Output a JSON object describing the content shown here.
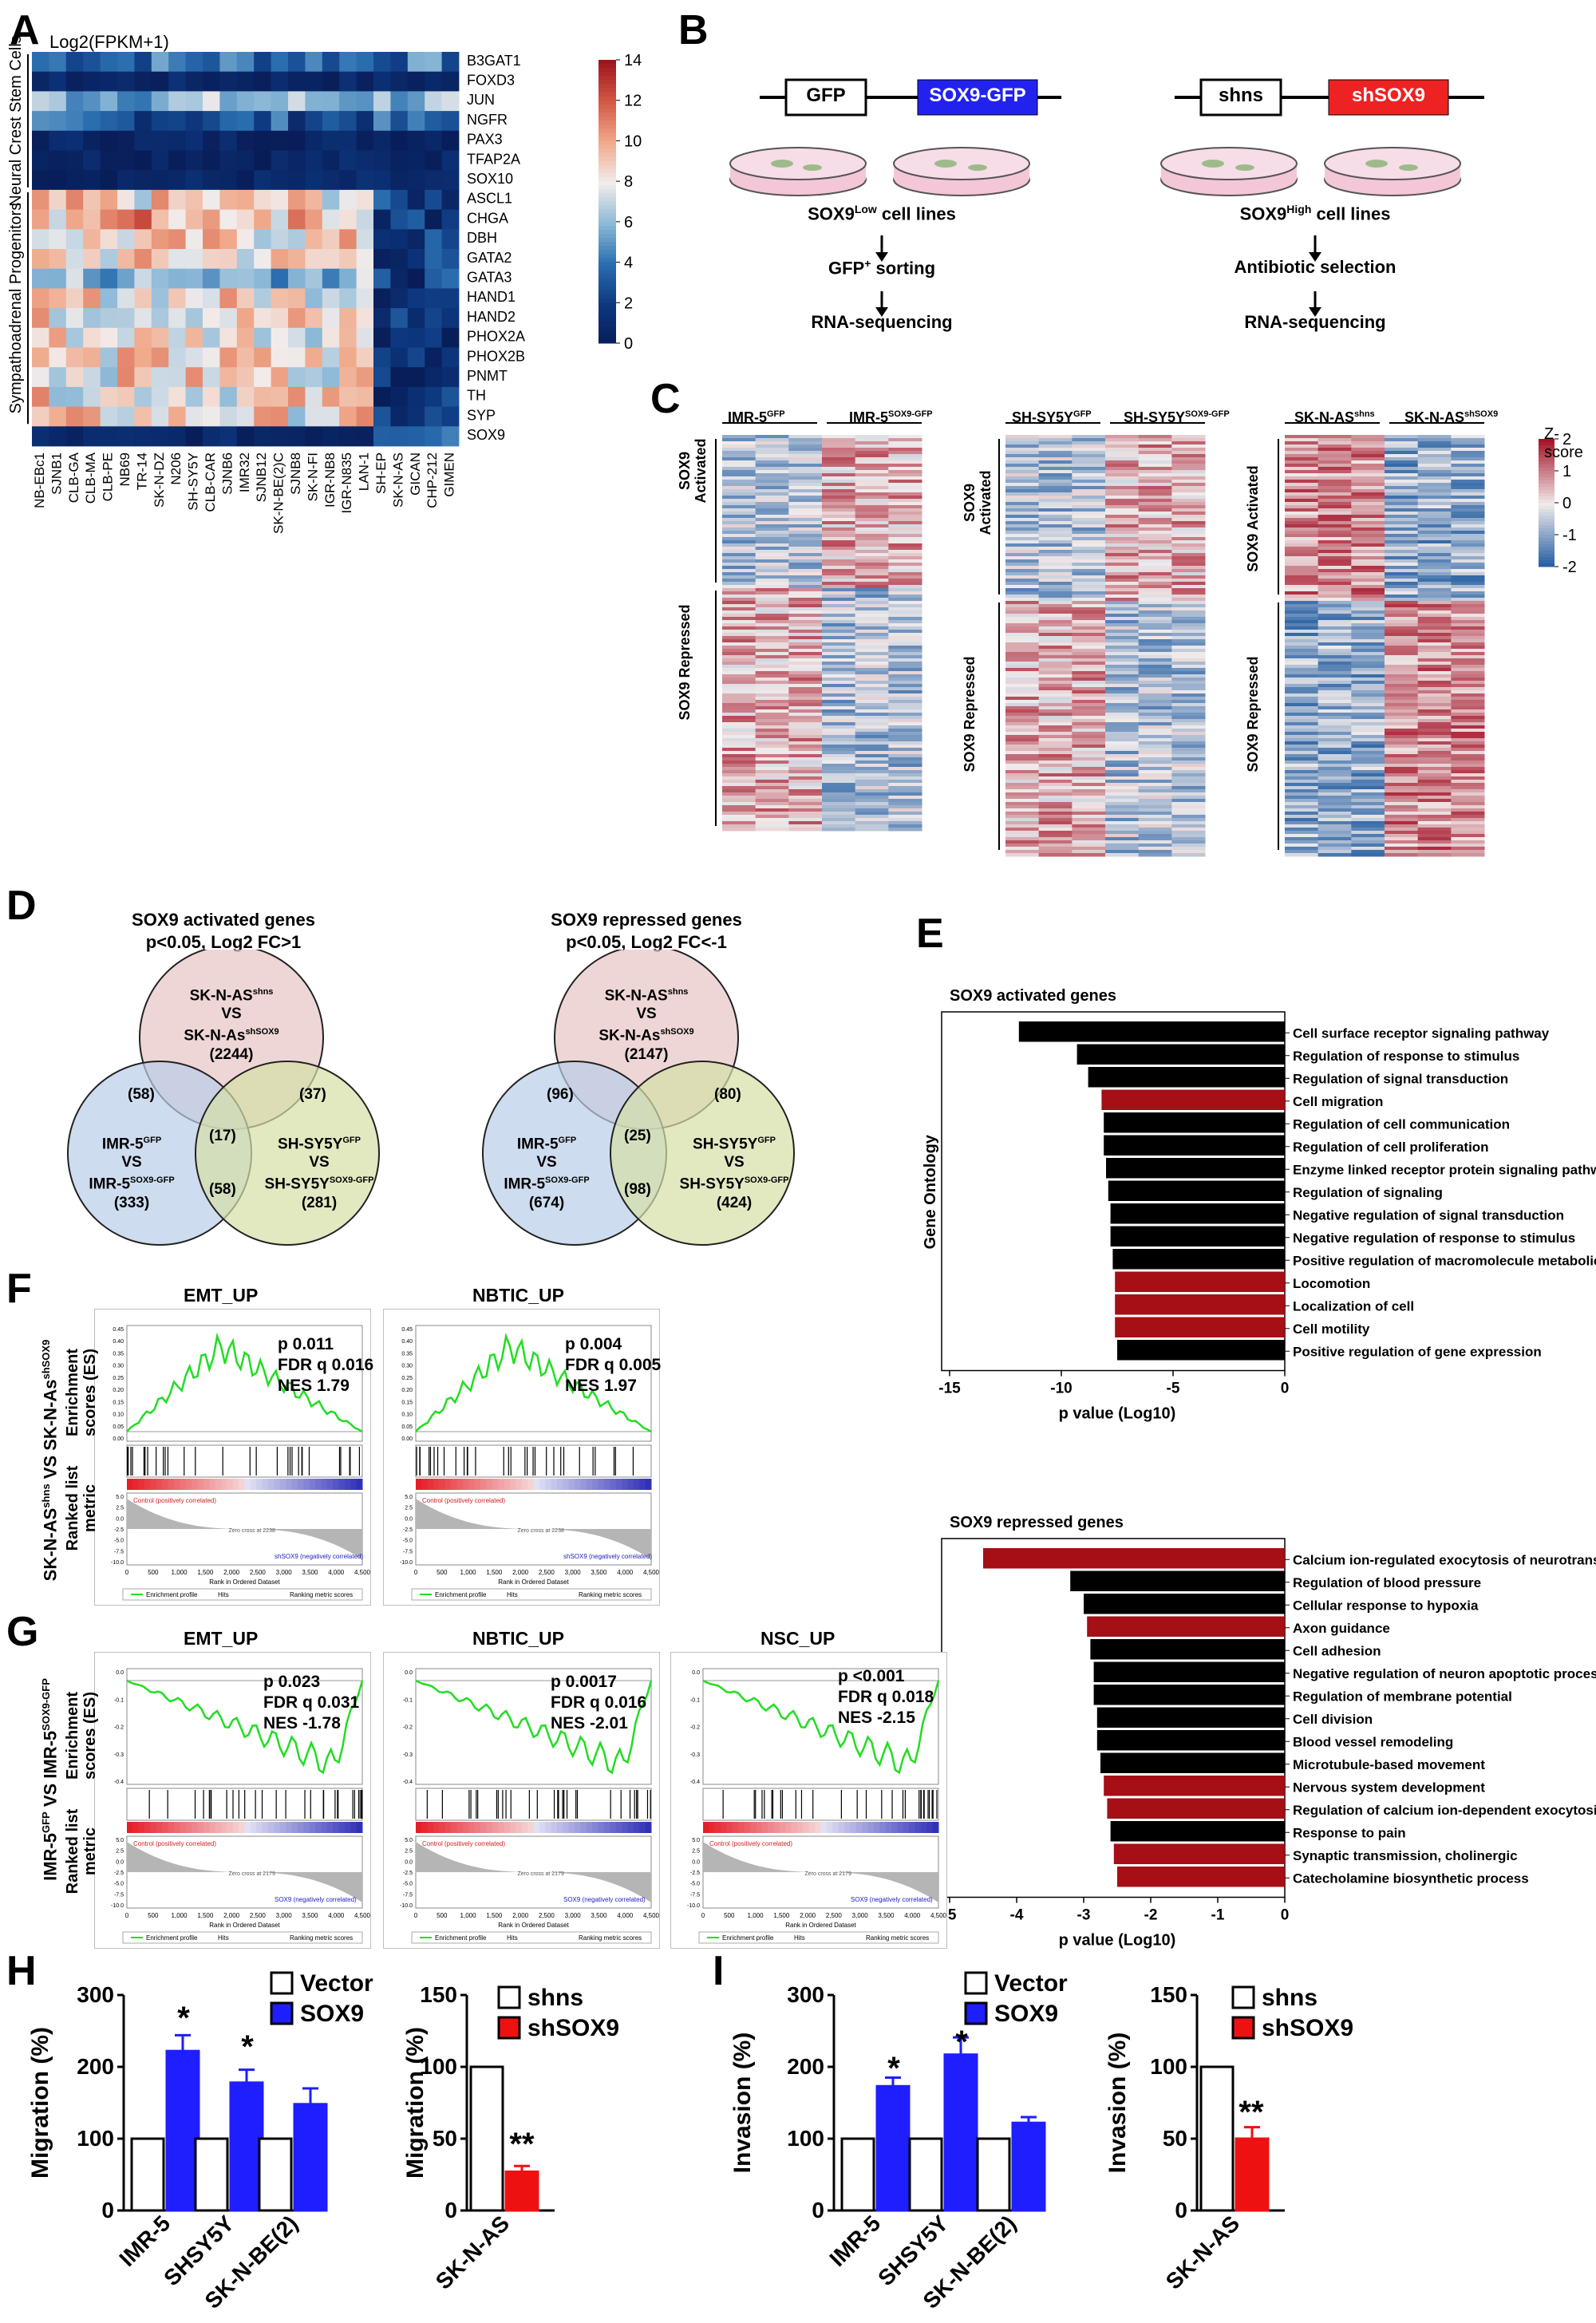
{
  "figure": {
    "panel_letters": [
      "A",
      "B",
      "C",
      "D",
      "E",
      "F",
      "G",
      "H",
      "I"
    ]
  },
  "panelA": {
    "title": "Log2(FPKM+1)",
    "group_nc": "Neural Crest Stem Cells",
    "group_sa": "Sympathoadrenal Progenitors",
    "genes": [
      "B3GAT1",
      "FOXD3",
      "JUN",
      "NGFR",
      "PAX3",
      "TFAP2A",
      "SOX10",
      "ASCL1",
      "CHGA",
      "DBH",
      "GATA2",
      "GATA3",
      "HAND1",
      "HAND2",
      "PHOX2A",
      "PHOX2B",
      "PNMT",
      "TH",
      "SYP",
      "SOX9"
    ],
    "cell_lines": [
      "NB-EBc1",
      "SJNB1",
      "CLB-GA",
      "CLB-MA",
      "CLB-PE",
      "NB69",
      "TR-14",
      "SK-N-DZ",
      "N206",
      "SH-SY5Y",
      "CLB-CAR",
      "SJNB6",
      "IMR32",
      "SJNB12",
      "SK-N-BE(2)C",
      "SJNB8",
      "SK-N-FI",
      "IGR-NB8",
      "IGR-N835",
      "LAN-1",
      "SH-EP",
      "SK-N-AS",
      "GICAN",
      "CHP-212",
      "GIMEN"
    ],
    "colorbar_ticks": [
      "14",
      "12",
      "10",
      "8",
      "6",
      "4",
      "2",
      "0"
    ],
    "colorbar_range": [
      0,
      14
    ]
  },
  "panelB": {
    "box_gfp": "GFP",
    "box_sox9gfp": "SOX9-GFP",
    "box_shns": "shns",
    "box_shsox9": "shSOX9",
    "left_steps": [
      "SOX9",
      "Low",
      " cell lines",
      "GFP",
      "+",
      " sorting",
      "RNA-sequencing"
    ],
    "right_steps": [
      "SOX9",
      "High",
      " cell lines",
      "Antibiotic selection",
      "RNA-sequencing"
    ],
    "colors": {
      "sox9gfp": "#2222ee",
      "shsox9": "#ee2222"
    }
  },
  "panelC": {
    "heatmaps": [
      {
        "left": "IMR-5",
        "left_sup": "GFP",
        "right": "IMR-5",
        "right_sup": "SOX9-GFP"
      },
      {
        "left": "SH-SY5Y",
        "left_sup": "GFP",
        "right": "SH-SY5Y",
        "right_sup": "SOX9-GFP"
      },
      {
        "left": "SK-N-AS",
        "left_sup": "shns",
        "right": "SK-N-AS",
        "right_sup": "shSOX9"
      }
    ],
    "row_labels": [
      "SOX9 Activated",
      "SOX9 Repressed"
    ],
    "scale_title": "Z-score",
    "scale_ticks": [
      "2",
      "1",
      "0",
      "-1",
      "-2"
    ]
  },
  "panelD": {
    "left": {
      "title1": "SOX9 activated genes",
      "title2": "p<0.05, Log2 FC>1",
      "counts": {
        "top": "(2244)",
        "left": "(333)",
        "right": "(281)",
        "tl": "(58)",
        "tr": "(37)",
        "center": "(17)",
        "bottom": "(58)"
      }
    },
    "right": {
      "title1": "SOX9 repressed genes",
      "title2": "p<0.05, Log2 FC<-1",
      "counts": {
        "top": "(2147)",
        "left": "(674)",
        "right": "(424)",
        "tl": "(96)",
        "tr": "(80)",
        "center": "(25)",
        "bottom": "(98)"
      }
    },
    "circle_top": [
      "SK-N-AS",
      "shns",
      "VS",
      "SK-N-As",
      "shSOX9"
    ],
    "circle_left": [
      "IMR-5",
      "GFP",
      "VS",
      "IMR-5",
      "SOX9-GFP"
    ],
    "circle_right": [
      "SH-SY5Y",
      "GFP",
      "VS",
      "SH-SY5Y",
      "SOX9-GFP"
    ]
  },
  "panelE": {
    "yaxis": "Gene Ontology",
    "xaxis": "p value (Log10)"
  },
  "panelF": {
    "ylabel_side": "SK-N-AS shns VS SK-N-AS shSOX9",
    "ylabel_es": "Enrichment scores (ES)",
    "ylabel_rank": "Ranked list metric",
    "plots": [
      {
        "title": "EMT_UP",
        "p": "p 0.011",
        "fdr": "FDR q 0.016",
        "nes": "NES 1.79"
      },
      {
        "title": "NBTIC_UP",
        "p": "p 0.004",
        "fdr": "FDR q 0.005",
        "nes": "NES 1.97"
      }
    ],
    "legend": [
      "Enrichment profile",
      "Hits",
      "Ranking metric scores"
    ],
    "xtitle": "Rank in Ordered Dataset",
    "pos_label": "Control (positively correlated)",
    "neg_label": "shSOX9 (negatively correlated)",
    "zero_cross": "Zero cross at 2238"
  },
  "panelG": {
    "ylabel_side": "IMR-5 GFP VS IMR-5 SOX9-GFP",
    "plots": [
      {
        "title": "EMT_UP",
        "p": "p 0.023",
        "fdr": "FDR q 0.031",
        "nes": "NES -1.78"
      },
      {
        "title": "NBTIC_UP",
        "p": "p 0.0017",
        "fdr": "FDR q 0.016",
        "nes": "NES -2.01"
      },
      {
        "title": "NSC_UP",
        "p": "p <0.001",
        "fdr": "FDR q 0.018",
        "nes": "NES -2.15"
      }
    ],
    "pos_label": "Control (positively correlated)",
    "neg_label": "SOX9 (negatively correlated)",
    "zero_cross": "Zero cross at 2179"
  },
  "panelH": {
    "left_ylabel": "Migration (%)",
    "legend_left": [
      "Vector",
      "SOX9"
    ],
    "right_ylabel": "Migration (%)",
    "legend_right": [
      "shns",
      "shSOX9"
    ],
    "sig": [
      "*",
      "*",
      "**"
    ]
  },
  "panelI": {
    "left_ylabel": "Invasion (%)",
    "legend_left": [
      "Vector",
      "SOX9"
    ],
    "right_ylabel": "Invasion (%)",
    "legend_right": [
      "shns",
      "shSOX9"
    ],
    "sig": [
      "*",
      "*",
      "**"
    ]
  },
  "chart_data": [
    {
      "type": "bar",
      "id": "E-activated",
      "title": "SOX9 activated genes",
      "xlabel": "p value (Log10)",
      "ylabel": "Gene Ontology",
      "xlim": [
        -15,
        0
      ],
      "xticks": [
        "-15",
        "-10",
        "-5",
        "0"
      ],
      "categories": [
        "Cell surface receptor signaling pathway",
        "Regulation of response to stimulus",
        "Regulation of signal transduction",
        "Cell migration",
        "Regulation of cell communication",
        "Regulation of cell proliferation",
        "Enzyme linked receptor protein signaling pathway",
        "Regulation of signaling",
        "Negative regulation of signal transduction",
        "Negative regulation of response to stimulus",
        "Positive regulation of macromolecule metabolic process",
        "Locomotion",
        "Localization of cell",
        "Cell motility",
        "Positive regulation of gene expression"
      ],
      "values": [
        -11.9,
        -9.3,
        -8.8,
        -8.2,
        -8.1,
        -8.1,
        -8.0,
        -7.9,
        -7.8,
        -7.8,
        -7.7,
        -7.6,
        -7.6,
        -7.6,
        -7.5
      ],
      "highlight": [
        false,
        false,
        false,
        true,
        false,
        false,
        false,
        false,
        false,
        false,
        false,
        true,
        true,
        true,
        false
      ],
      "colors": {
        "default": "#000000",
        "highlight": "#a50f15"
      }
    },
    {
      "type": "bar",
      "id": "E-repressed",
      "title": "SOX9 repressed genes",
      "xlabel": "p value (Log10)",
      "ylabel": "Gene Ontology",
      "xlim": [
        -5,
        0
      ],
      "xticks": [
        "-5",
        "-4",
        "-3",
        "-2",
        "-1",
        "0"
      ],
      "categories": [
        "Calcium ion-regulated exocytosis of neurotransmitte",
        "Regulation of blood pressure",
        "Cellular response to hypoxia",
        "Axon guidance",
        "Cell adhesion",
        "Negative regulation of neuron apoptotic process",
        "Regulation of membrane potential",
        "Cell division",
        "Blood vessel remodeling",
        "Microtubule-based movement",
        "Nervous system development",
        "Regulation of calcium ion-dependent exocytosis",
        "Response to pain",
        "Synaptic transmission, cholinergic",
        "Catecholamine biosynthetic process"
      ],
      "values": [
        -4.5,
        -3.2,
        -3.0,
        -2.95,
        -2.9,
        -2.85,
        -2.85,
        -2.8,
        -2.8,
        -2.75,
        -2.7,
        -2.65,
        -2.6,
        -2.55,
        -2.5
      ],
      "highlight": [
        true,
        false,
        false,
        true,
        false,
        false,
        false,
        false,
        false,
        false,
        true,
        true,
        false,
        true,
        true
      ],
      "colors": {
        "default": "#000000",
        "highlight": "#a50f15"
      }
    },
    {
      "type": "bar",
      "id": "H-left",
      "ylabel": "Migration (%)",
      "ylim": [
        0,
        300
      ],
      "yticks": [
        "0",
        "100",
        "200",
        "300"
      ],
      "categories": [
        "IMR-5",
        "SHSY5Y",
        "SK-N-BE(2)"
      ],
      "series": [
        {
          "name": "Vector",
          "values": [
            100,
            100,
            100
          ],
          "errors": [
            0,
            0,
            0
          ]
        },
        {
          "name": "SOX9",
          "values": [
            222,
            178,
            148
          ],
          "errors": [
            22,
            18,
            22
          ]
        }
      ],
      "colors": {
        "Vector": "#ffffff",
        "SOX9": "#1e1eff"
      }
    },
    {
      "type": "bar",
      "id": "H-right",
      "ylabel": "Migration (%)",
      "ylim": [
        0,
        150
      ],
      "yticks": [
        "0",
        "50",
        "100",
        "150"
      ],
      "categories": [
        "SK-N-AS"
      ],
      "series": [
        {
          "name": "shns",
          "values": [
            100
          ],
          "errors": [
            0
          ]
        },
        {
          "name": "shSOX9",
          "values": [
            27
          ],
          "errors": [
            4
          ]
        }
      ],
      "colors": {
        "shns": "#ffffff",
        "shSOX9": "#ee1111"
      }
    },
    {
      "type": "bar",
      "id": "I-left",
      "ylabel": "Invasion (%)",
      "ylim": [
        0,
        300
      ],
      "yticks": [
        "0",
        "100",
        "200",
        "300"
      ],
      "categories": [
        "IMR-5",
        "SHSY5Y",
        "SK-N-BE(2)"
      ],
      "series": [
        {
          "name": "Vector",
          "values": [
            100,
            100,
            100
          ],
          "errors": [
            0,
            0,
            0
          ]
        },
        {
          "name": "SOX9",
          "values": [
            173,
            217,
            122
          ],
          "errors": [
            12,
            24,
            8
          ]
        }
      ],
      "colors": {
        "Vector": "#ffffff",
        "SOX9": "#1e1eff"
      }
    },
    {
      "type": "bar",
      "id": "I-right",
      "ylabel": "Invasion (%)",
      "ylim": [
        0,
        150
      ],
      "yticks": [
        "0",
        "50",
        "100",
        "150"
      ],
      "categories": [
        "SK-N-AS"
      ],
      "series": [
        {
          "name": "shns",
          "values": [
            100
          ],
          "errors": [
            0
          ]
        },
        {
          "name": "shSOX9",
          "values": [
            50
          ],
          "errors": [
            8
          ]
        }
      ],
      "colors": {
        "shns": "#ffffff",
        "shSOX9": "#ee1111"
      }
    }
  ]
}
